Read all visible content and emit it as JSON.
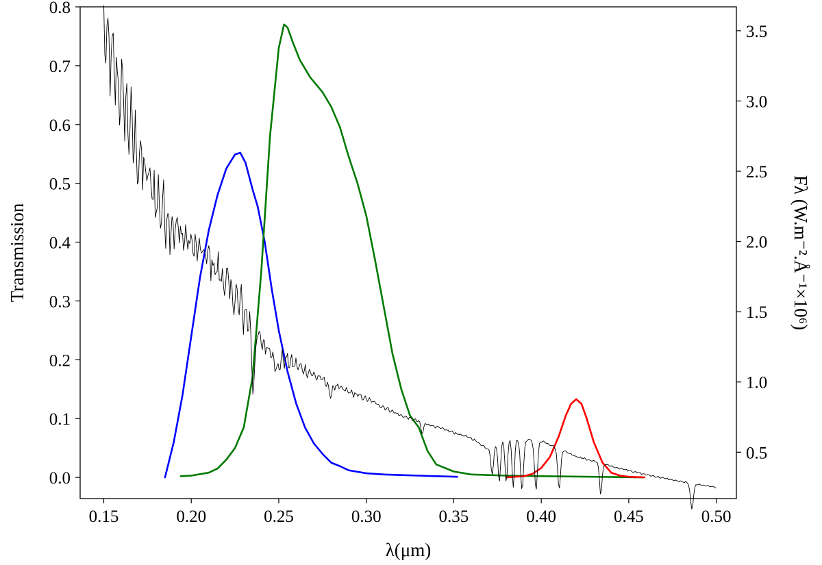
{
  "chart_data": {
    "type": "line",
    "title": "",
    "xlabel": "λ(μm)",
    "ylabel_left": "Transmission",
    "ylabel_right": "Fλ (W.m⁻².Å⁻¹×10⁶)",
    "xlim": [
      0.1365,
      0.5115
    ],
    "ylim_left": [
      -0.036,
      0.8
    ],
    "ylim_right": [
      0.17,
      3.67
    ],
    "grid": false,
    "x_ticks": [
      {
        "value": 0.15,
        "label": "0.15"
      },
      {
        "value": 0.2,
        "label": "0.20"
      },
      {
        "value": 0.25,
        "label": "0.25"
      },
      {
        "value": 0.3,
        "label": "0.30"
      },
      {
        "value": 0.35,
        "label": "0.35"
      },
      {
        "value": 0.4,
        "label": "0.40"
      },
      {
        "value": 0.45,
        "label": "0.45"
      },
      {
        "value": 0.5,
        "label": "0.50"
      }
    ],
    "y_ticks_left": [
      {
        "value": 0.0,
        "label": "0.0"
      },
      {
        "value": 0.1,
        "label": "0.1"
      },
      {
        "value": 0.2,
        "label": "0.2"
      },
      {
        "value": 0.3,
        "label": "0.3"
      },
      {
        "value": 0.4,
        "label": "0.4"
      },
      {
        "value": 0.5,
        "label": "0.5"
      },
      {
        "value": 0.6,
        "label": "0.6"
      },
      {
        "value": 0.7,
        "label": "0.7"
      },
      {
        "value": 0.8,
        "label": "0.8"
      }
    ],
    "y_ticks_right": [
      {
        "value": 0.5,
        "label": "0.5"
      },
      {
        "value": 1.0,
        "label": "1.0"
      },
      {
        "value": 1.5,
        "label": "1.5"
      },
      {
        "value": 2.0,
        "label": "2.0"
      },
      {
        "value": 2.5,
        "label": "2.5"
      },
      {
        "value": 3.0,
        "label": "3.0"
      },
      {
        "value": 3.5,
        "label": "3.5"
      }
    ],
    "series": [
      {
        "axis": "left",
        "color": "#0000ff",
        "width": 2.6,
        "points": [
          [
            0.185,
            0.0
          ],
          [
            0.19,
            0.06
          ],
          [
            0.195,
            0.14
          ],
          [
            0.2,
            0.24
          ],
          [
            0.205,
            0.34
          ],
          [
            0.21,
            0.42
          ],
          [
            0.215,
            0.48
          ],
          [
            0.22,
            0.525
          ],
          [
            0.225,
            0.549
          ],
          [
            0.228,
            0.552
          ],
          [
            0.231,
            0.535
          ],
          [
            0.235,
            0.49
          ],
          [
            0.238,
            0.46
          ],
          [
            0.242,
            0.4
          ],
          [
            0.246,
            0.32
          ],
          [
            0.25,
            0.25
          ],
          [
            0.255,
            0.18
          ],
          [
            0.26,
            0.125
          ],
          [
            0.265,
            0.085
          ],
          [
            0.27,
            0.058
          ],
          [
            0.275,
            0.04
          ],
          [
            0.28,
            0.025
          ],
          [
            0.285,
            0.019
          ],
          [
            0.29,
            0.012
          ],
          [
            0.3,
            0.007
          ],
          [
            0.31,
            0.005
          ],
          [
            0.32,
            0.004
          ],
          [
            0.33,
            0.003
          ],
          [
            0.34,
            0.002
          ],
          [
            0.352,
            0.001
          ]
        ]
      },
      {
        "axis": "left",
        "color": "#007a00",
        "width": 2.6,
        "points": [
          [
            0.194,
            0.002
          ],
          [
            0.2,
            0.003
          ],
          [
            0.21,
            0.008
          ],
          [
            0.215,
            0.015
          ],
          [
            0.22,
            0.03
          ],
          [
            0.225,
            0.05
          ],
          [
            0.23,
            0.085
          ],
          [
            0.235,
            0.17
          ],
          [
            0.24,
            0.35
          ],
          [
            0.245,
            0.58
          ],
          [
            0.25,
            0.73
          ],
          [
            0.253,
            0.77
          ],
          [
            0.255,
            0.765
          ],
          [
            0.258,
            0.74
          ],
          [
            0.262,
            0.71
          ],
          [
            0.268,
            0.68
          ],
          [
            0.275,
            0.655
          ],
          [
            0.28,
            0.63
          ],
          [
            0.285,
            0.595
          ],
          [
            0.29,
            0.545
          ],
          [
            0.295,
            0.5
          ],
          [
            0.3,
            0.445
          ],
          [
            0.305,
            0.37
          ],
          [
            0.31,
            0.29
          ],
          [
            0.315,
            0.21
          ],
          [
            0.32,
            0.15
          ],
          [
            0.325,
            0.105
          ],
          [
            0.33,
            0.085
          ],
          [
            0.335,
            0.045
          ],
          [
            0.34,
            0.022
          ],
          [
            0.35,
            0.01
          ],
          [
            0.36,
            0.005
          ],
          [
            0.38,
            0.003
          ],
          [
            0.4,
            0.002
          ],
          [
            0.43,
            0.001
          ],
          [
            0.458,
            0.0
          ]
        ]
      },
      {
        "axis": "left",
        "color": "#ff0000",
        "width": 2.6,
        "points": [
          [
            0.38,
            0.0
          ],
          [
            0.39,
            0.002
          ],
          [
            0.395,
            0.006
          ],
          [
            0.4,
            0.016
          ],
          [
            0.405,
            0.035
          ],
          [
            0.41,
            0.07
          ],
          [
            0.414,
            0.105
          ],
          [
            0.417,
            0.125
          ],
          [
            0.42,
            0.133
          ],
          [
            0.423,
            0.125
          ],
          [
            0.426,
            0.1
          ],
          [
            0.43,
            0.06
          ],
          [
            0.435,
            0.025
          ],
          [
            0.44,
            0.008
          ],
          [
            0.445,
            0.003
          ],
          [
            0.45,
            0.001
          ],
          [
            0.459,
            0.0
          ]
        ]
      },
      {
        "axis": "right",
        "color": "#000000",
        "width": 0.9,
        "generator": {
          "x_start": 0.15,
          "x_end": 0.5,
          "step": 0.0006,
          "baseline": [
            [
              0.15,
              3.45
            ],
            [
              0.16,
              3.05
            ],
            [
              0.17,
              2.6
            ],
            [
              0.18,
              2.3
            ],
            [
              0.19,
              2.1
            ],
            [
              0.2,
              1.98
            ],
            [
              0.21,
              1.88
            ],
            [
              0.22,
              1.7
            ],
            [
              0.23,
              1.5
            ],
            [
              0.24,
              1.28
            ],
            [
              0.25,
              1.18
            ],
            [
              0.26,
              1.12
            ],
            [
              0.27,
              1.05
            ],
            [
              0.28,
              0.98
            ],
            [
              0.3,
              0.88
            ],
            [
              0.32,
              0.76
            ],
            [
              0.34,
              0.68
            ],
            [
              0.36,
              0.6
            ],
            [
              0.37,
              0.52
            ],
            [
              0.38,
              0.6
            ],
            [
              0.4,
              0.58
            ],
            [
              0.42,
              0.47
            ],
            [
              0.44,
              0.4
            ],
            [
              0.46,
              0.34
            ],
            [
              0.48,
              0.29
            ],
            [
              0.5,
              0.25
            ]
          ],
          "noise": [
            [
              0.15,
              0.3
            ],
            [
              0.18,
              0.25
            ],
            [
              0.2,
              0.12
            ],
            [
              0.23,
              0.16
            ],
            [
              0.24,
              0.08
            ],
            [
              0.26,
              0.05
            ],
            [
              0.28,
              0.03
            ],
            [
              0.32,
              0.01
            ],
            [
              0.5,
              0.005
            ]
          ],
          "dips": [
            [
              0.2355,
              0.4,
              0.0012
            ],
            [
              0.249,
              0.12,
              0.0015
            ],
            [
              0.2795,
              0.1,
              0.001
            ],
            [
              0.332,
              0.08,
              0.001
            ],
            [
              0.372,
              0.2,
              0.001
            ],
            [
              0.376,
              0.28,
              0.001
            ],
            [
              0.38,
              0.32,
              0.001
            ],
            [
              0.384,
              0.34,
              0.001
            ],
            [
              0.389,
              0.36,
              0.0012
            ],
            [
              0.397,
              0.35,
              0.0012
            ],
            [
              0.4102,
              0.28,
              0.0012
            ],
            [
              0.434,
              0.22,
              0.001
            ],
            [
              0.4861,
              0.18,
              0.0012
            ]
          ]
        }
      }
    ]
  }
}
